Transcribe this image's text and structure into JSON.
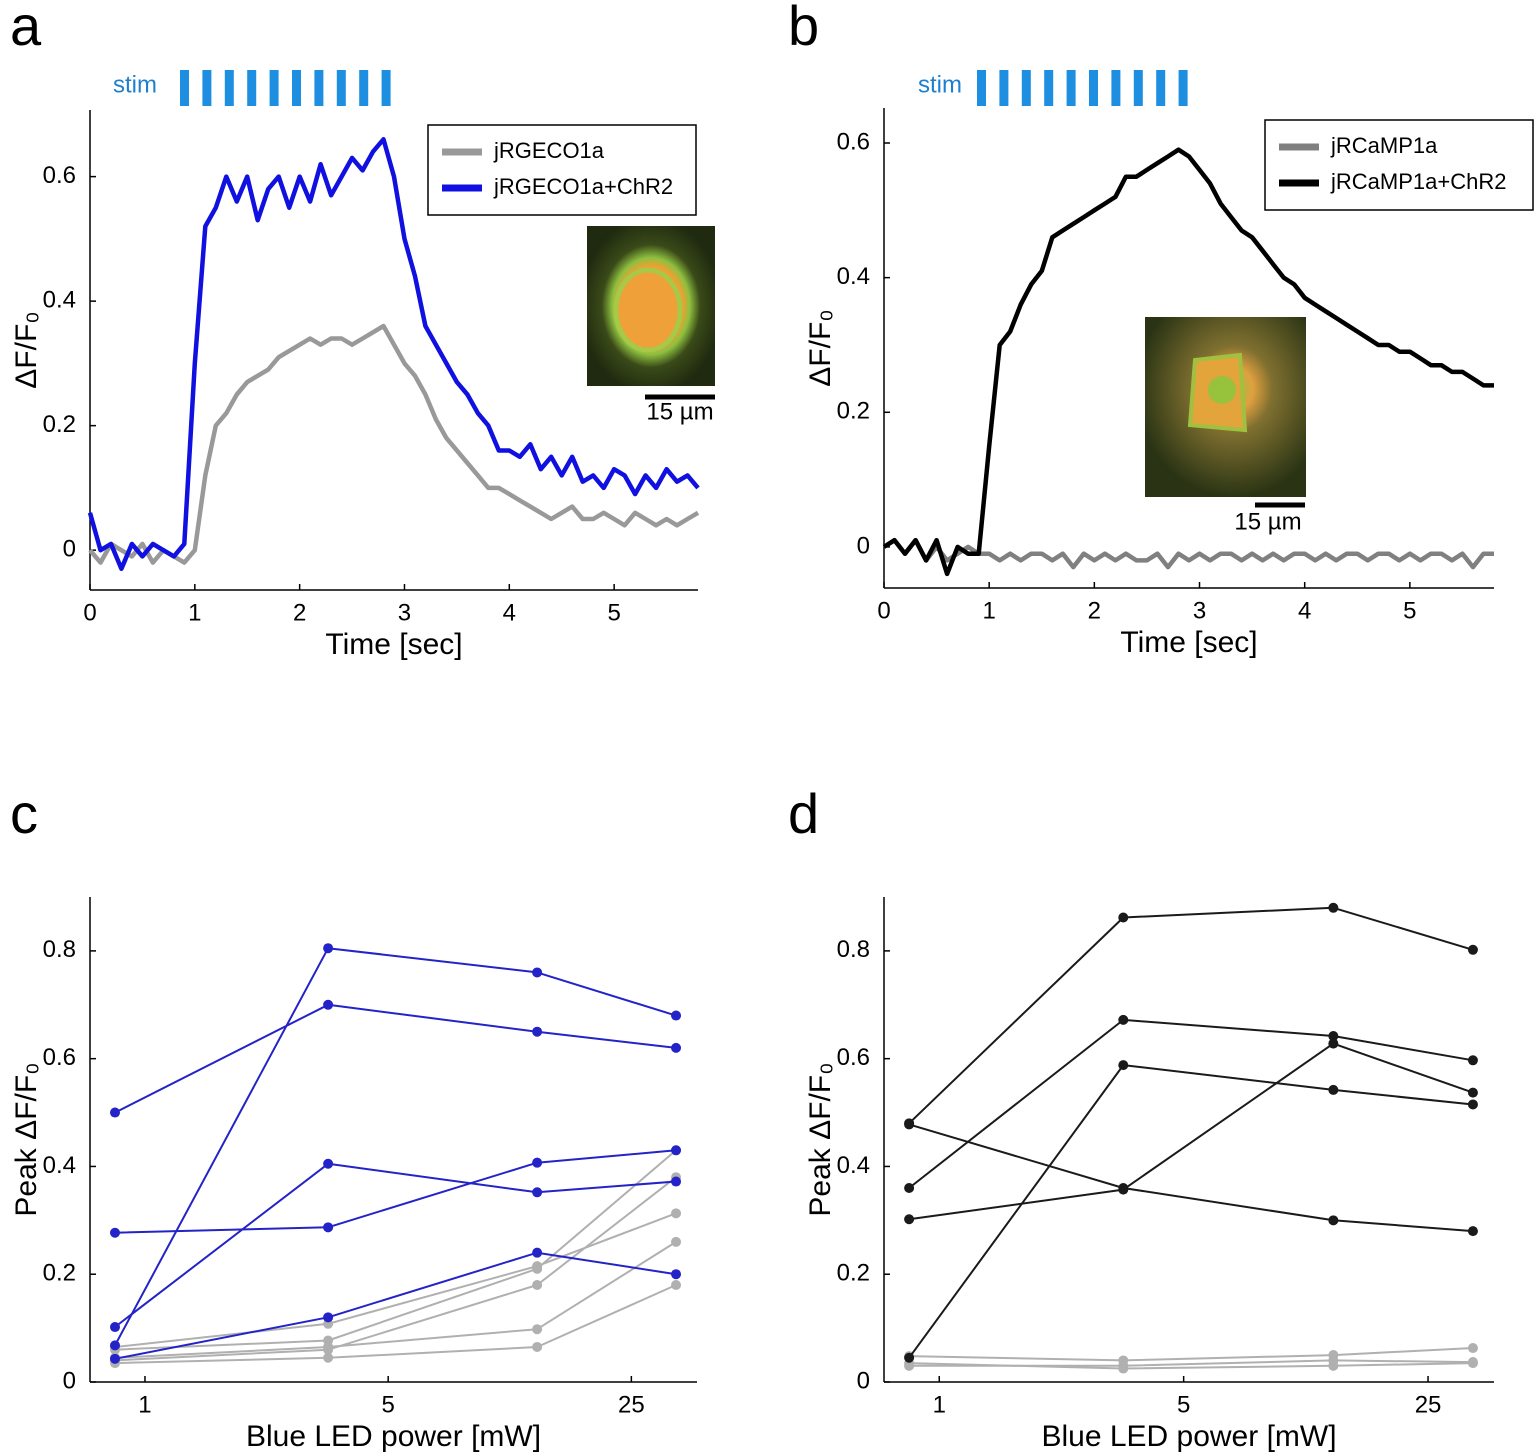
{
  "chart_data": [
    {
      "type": "line",
      "panel_label": "a",
      "stim_label": "stim",
      "inset_scale": "15 µm",
      "xlabel": "Time [sec]",
      "ylabel": "ΔF/F₀",
      "x": [
        0,
        0.1,
        0.2,
        0.3,
        0.4,
        0.5,
        0.6,
        0.7,
        0.8,
        0.9,
        1.0,
        1.1,
        1.2,
        1.3,
        1.4,
        1.5,
        1.6,
        1.7,
        1.8,
        1.9,
        2.0,
        2.1,
        2.2,
        2.3,
        2.4,
        2.5,
        2.6,
        2.7,
        2.8,
        2.9,
        3.0,
        3.1,
        3.2,
        3.3,
        3.4,
        3.5,
        3.6,
        3.7,
        3.8,
        3.9,
        4.0,
        4.1,
        4.2,
        4.3,
        4.4,
        4.5,
        4.6,
        4.7,
        4.8,
        4.9,
        5.0,
        5.1,
        5.2,
        5.3,
        5.4,
        5.5,
        5.6,
        5.7,
        5.8
      ],
      "xlim": [
        0,
        5.8
      ],
      "xticks": [
        0,
        1,
        2,
        3,
        4,
        5
      ],
      "ylim": [
        -0.064,
        0.707
      ],
      "yticks": [
        0,
        0.2,
        0.4,
        0.6
      ],
      "legend": "upper right",
      "series": [
        {
          "name": "jRGECO1a",
          "color": "#999999",
          "values": [
            0.0,
            -0.02,
            0.01,
            0.0,
            -0.01,
            0.01,
            -0.02,
            0.0,
            -0.01,
            -0.02,
            0.0,
            0.12,
            0.2,
            0.22,
            0.25,
            0.27,
            0.28,
            0.29,
            0.31,
            0.32,
            0.33,
            0.34,
            0.33,
            0.34,
            0.34,
            0.33,
            0.34,
            0.35,
            0.36,
            0.33,
            0.3,
            0.28,
            0.25,
            0.21,
            0.18,
            0.16,
            0.14,
            0.12,
            0.1,
            0.1,
            0.09,
            0.08,
            0.07,
            0.06,
            0.05,
            0.06,
            0.07,
            0.05,
            0.05,
            0.06,
            0.05,
            0.04,
            0.06,
            0.05,
            0.04,
            0.05,
            0.04,
            0.05,
            0.06
          ]
        },
        {
          "name": "jRGECO1a+ChR2",
          "color": "#1010e0",
          "values": [
            0.06,
            0.0,
            0.01,
            -0.03,
            0.01,
            -0.01,
            0.01,
            0.0,
            -0.01,
            0.01,
            0.3,
            0.52,
            0.55,
            0.6,
            0.56,
            0.6,
            0.53,
            0.58,
            0.6,
            0.55,
            0.6,
            0.56,
            0.62,
            0.57,
            0.6,
            0.63,
            0.61,
            0.64,
            0.66,
            0.6,
            0.5,
            0.44,
            0.36,
            0.33,
            0.3,
            0.27,
            0.25,
            0.22,
            0.2,
            0.16,
            0.16,
            0.15,
            0.17,
            0.13,
            0.15,
            0.12,
            0.15,
            0.11,
            0.12,
            0.1,
            0.13,
            0.12,
            0.09,
            0.12,
            0.1,
            0.13,
            0.11,
            0.12,
            0.1
          ]
        }
      ]
    },
    {
      "type": "line",
      "panel_label": "b",
      "stim_label": "stim",
      "inset_scale": "15 µm",
      "xlabel": "Time [sec]",
      "ylabel": "ΔF/F₀",
      "x": [
        0,
        0.1,
        0.2,
        0.3,
        0.4,
        0.5,
        0.6,
        0.7,
        0.8,
        0.9,
        1.0,
        1.1,
        1.2,
        1.3,
        1.4,
        1.5,
        1.6,
        1.7,
        1.8,
        1.9,
        2.0,
        2.1,
        2.2,
        2.3,
        2.4,
        2.5,
        2.6,
        2.7,
        2.8,
        2.9,
        3.0,
        3.1,
        3.2,
        3.3,
        3.4,
        3.5,
        3.6,
        3.7,
        3.8,
        3.9,
        4.0,
        4.1,
        4.2,
        4.3,
        4.4,
        4.5,
        4.6,
        4.7,
        4.8,
        4.9,
        5.0,
        5.1,
        5.2,
        5.3,
        5.4,
        5.5,
        5.6,
        5.7,
        5.8
      ],
      "xlim": [
        0,
        5.8
      ],
      "xticks": [
        0,
        1,
        2,
        3,
        4,
        5
      ],
      "ylim": [
        -0.061,
        0.652
      ],
      "yticks": [
        0,
        0.2,
        0.4,
        0.6
      ],
      "legend": "upper right",
      "series": [
        {
          "name": "jRCaMP1a",
          "color": "#808080",
          "values": [
            0.0,
            0.01,
            -0.01,
            0.01,
            -0.02,
            0.0,
            -0.02,
            -0.01,
            0.0,
            -0.01,
            -0.01,
            -0.02,
            -0.01,
            -0.02,
            -0.01,
            -0.01,
            -0.02,
            -0.01,
            -0.03,
            -0.01,
            -0.02,
            -0.01,
            -0.02,
            -0.01,
            -0.02,
            -0.02,
            -0.01,
            -0.03,
            -0.01,
            -0.02,
            -0.01,
            -0.02,
            -0.01,
            -0.01,
            -0.02,
            -0.01,
            -0.02,
            -0.01,
            -0.02,
            -0.01,
            -0.01,
            -0.02,
            -0.01,
            -0.02,
            -0.01,
            -0.01,
            -0.02,
            -0.01,
            -0.01,
            -0.02,
            -0.01,
            -0.02,
            -0.01,
            -0.01,
            -0.02,
            -0.01,
            -0.03,
            -0.01,
            -0.01
          ]
        },
        {
          "name": "jRCaMP1a+ChR2",
          "color": "#000000",
          "values": [
            0.0,
            0.01,
            -0.01,
            0.01,
            -0.02,
            0.01,
            -0.04,
            0.0,
            -0.01,
            -0.01,
            0.15,
            0.3,
            0.32,
            0.36,
            0.39,
            0.41,
            0.46,
            0.47,
            0.48,
            0.49,
            0.5,
            0.51,
            0.52,
            0.55,
            0.55,
            0.56,
            0.57,
            0.58,
            0.59,
            0.58,
            0.56,
            0.54,
            0.51,
            0.49,
            0.47,
            0.46,
            0.44,
            0.42,
            0.4,
            0.39,
            0.37,
            0.36,
            0.35,
            0.34,
            0.33,
            0.32,
            0.31,
            0.3,
            0.3,
            0.29,
            0.29,
            0.28,
            0.27,
            0.27,
            0.26,
            0.26,
            0.25,
            0.24,
            0.24
          ]
        }
      ]
    },
    {
      "type": "line",
      "panel_label": "c",
      "markers": true,
      "xscale": "log",
      "xlabel": "Blue LED power [mW]",
      "ylabel": "Peak ΔF/F₀",
      "x": [
        0.82,
        3.36,
        13.4,
        33.6
      ],
      "xlim": [
        0.695,
        38.6
      ],
      "xticks": [
        1,
        5,
        25
      ],
      "ylim": [
        0,
        0.9
      ],
      "yticks": [
        0,
        0.2,
        0.4,
        0.6,
        0.8
      ],
      "series": [
        {
          "color": "#b0b0b0",
          "values": [
            0.065,
            0.108,
            0.215,
            0.313
          ]
        },
        {
          "color": "#b0b0b0",
          "values": [
            0.06,
            0.077,
            0.21,
            0.43
          ]
        },
        {
          "color": "#b0b0b0",
          "values": [
            0.04,
            0.06,
            0.18,
            0.38
          ]
        },
        {
          "color": "#b0b0b0",
          "values": [
            0.035,
            0.045,
            0.065,
            0.18
          ]
        },
        {
          "color": "#b0b0b0",
          "values": [
            0.045,
            0.065,
            0.098,
            0.26
          ]
        },
        {
          "color": "#2323c8",
          "values": [
            0.5,
            0.7,
            0.65,
            0.62
          ]
        },
        {
          "color": "#2323c8",
          "values": [
            0.277,
            0.287,
            0.407,
            0.43
          ]
        },
        {
          "color": "#2323c8",
          "values": [
            0.102,
            0.405,
            0.352,
            0.372
          ]
        },
        {
          "color": "#2323c8",
          "values": [
            0.068,
            0.805,
            0.76,
            0.68
          ]
        },
        {
          "color": "#2323c8",
          "values": [
            0.043,
            0.12,
            0.24,
            0.2
          ]
        }
      ]
    },
    {
      "type": "line",
      "panel_label": "d",
      "markers": true,
      "xscale": "log",
      "xlabel": "Blue LED power [mW]",
      "ylabel": "Peak ΔF/F₀",
      "x": [
        0.82,
        3.36,
        13.4,
        33.6
      ],
      "xlim": [
        0.695,
        38.6
      ],
      "xticks": [
        1,
        5,
        25
      ],
      "ylim": [
        0,
        0.9
      ],
      "yticks": [
        0,
        0.2,
        0.4,
        0.6,
        0.8
      ],
      "series": [
        {
          "color": "#b0b0b0",
          "values": [
            0.048,
            0.04,
            0.05,
            0.063
          ]
        },
        {
          "color": "#b0b0b0",
          "values": [
            0.035,
            0.025,
            0.03,
            0.035
          ]
        },
        {
          "color": "#b0b0b0",
          "values": [
            0.03,
            0.03,
            0.04,
            0.037
          ]
        },
        {
          "color": "#1a1a1a",
          "values": [
            0.48,
            0.862,
            0.88,
            0.802
          ]
        },
        {
          "color": "#1a1a1a",
          "values": [
            0.36,
            0.672,
            0.642,
            0.597
          ]
        },
        {
          "color": "#1a1a1a",
          "values": [
            0.045,
            0.588,
            0.542,
            0.515
          ]
        },
        {
          "color": "#1a1a1a",
          "values": [
            0.302,
            0.357,
            0.628,
            0.537
          ]
        },
        {
          "color": "#1a1a1a",
          "values": [
            0.478,
            0.36,
            0.3,
            0.28
          ]
        }
      ]
    }
  ]
}
